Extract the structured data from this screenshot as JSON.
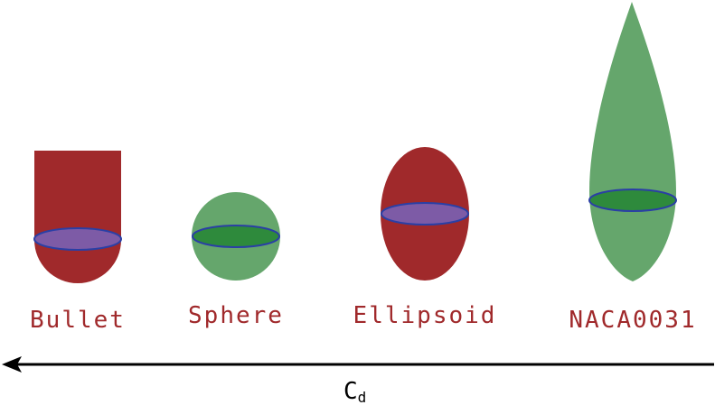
{
  "shapes": [
    {
      "label": "Bullet",
      "color": "#a0292b"
    },
    {
      "label": "Sphere",
      "color": "#65a66c"
    },
    {
      "label": "Ellipsoid",
      "color": "#a0292b"
    },
    {
      "label": "NACA0031",
      "color": "#65a66c"
    }
  ],
  "axis": {
    "symbol": "C",
    "subscript": "d",
    "direction": "left"
  },
  "colors": {
    "label_text": "#a0292b",
    "outline": "#2a3fa5",
    "section_fill_on_red": "#7d5ba6",
    "section_fill_on_green": "#2e8a3c",
    "arrow": "#000000"
  }
}
